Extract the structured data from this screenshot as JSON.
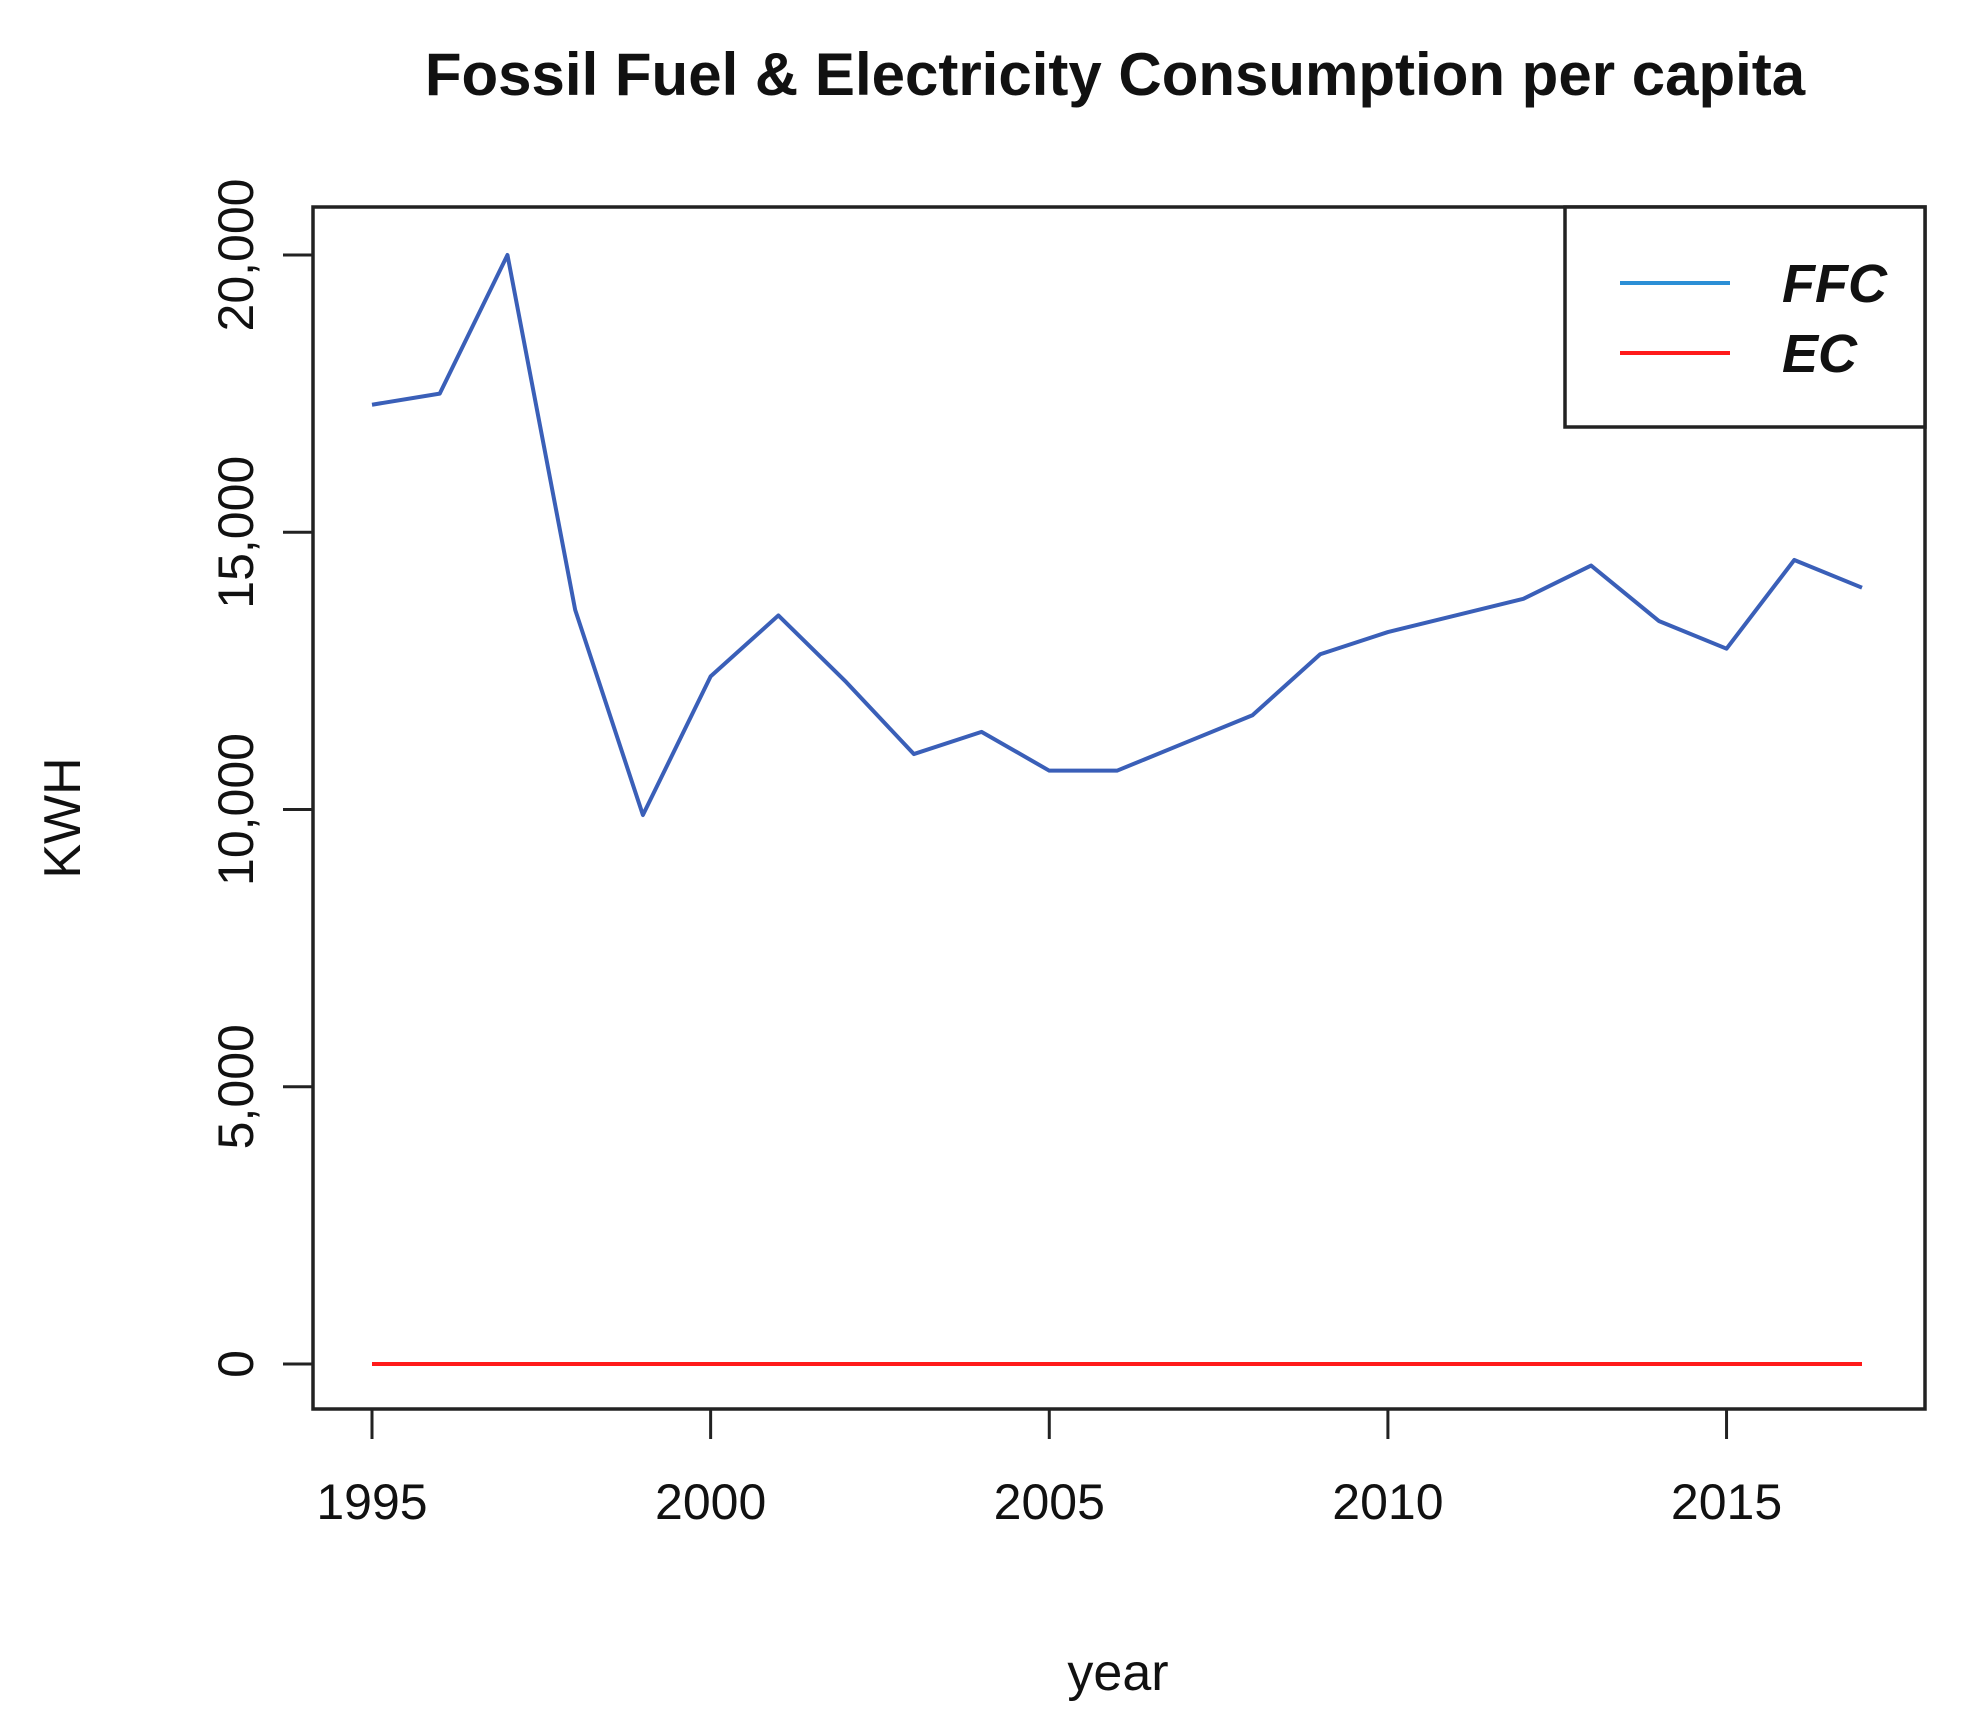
{
  "chart_data": {
    "type": "line",
    "title": "Fossil Fuel & Electricity Consumption per capita",
    "xlabel": "year",
    "ylabel": "KWH",
    "xlim": [
      1995,
      2017
    ],
    "ylim": [
      0,
      20000
    ],
    "x_ticks": [
      1995,
      2000,
      2005,
      2010,
      2015
    ],
    "y_ticks": [
      0,
      5000,
      10000,
      15000,
      20000
    ],
    "x_tick_labels": [
      "1995",
      "2000",
      "2005",
      "2010",
      "2015"
    ],
    "y_tick_labels": [
      "0",
      "5,000",
      "10,000",
      "15,000",
      "20,000"
    ],
    "x": [
      1995,
      1996,
      1997,
      1998,
      1999,
      2000,
      2001,
      2002,
      2003,
      2004,
      2005,
      2006,
      2007,
      2008,
      2009,
      2010,
      2011,
      2012,
      2013,
      2014,
      2015,
      2016,
      2017
    ],
    "series": [
      {
        "name": "FFC",
        "color": "#3a5fb8",
        "values": [
          17300,
          17500,
          20000,
          13600,
          9900,
          12400,
          13500,
          12300,
          11000,
          11400,
          10700,
          10700,
          11200,
          11700,
          12800,
          13200,
          13500,
          13800,
          14400,
          13400,
          12900,
          14500,
          14000
        ]
      },
      {
        "name": "EC",
        "color": "#ff1a1a",
        "values": [
          0,
          0,
          0,
          0,
          0,
          0,
          0,
          0,
          0,
          0,
          0,
          0,
          0,
          0,
          0,
          0,
          0,
          0,
          0,
          0,
          0,
          0,
          0
        ]
      }
    ],
    "legend": {
      "position": "top-right",
      "entries": [
        {
          "label": "FFC",
          "color": "#2b8fd6"
        },
        {
          "label": "EC",
          "color": "#ff1a1a"
        }
      ]
    },
    "grid": false
  }
}
